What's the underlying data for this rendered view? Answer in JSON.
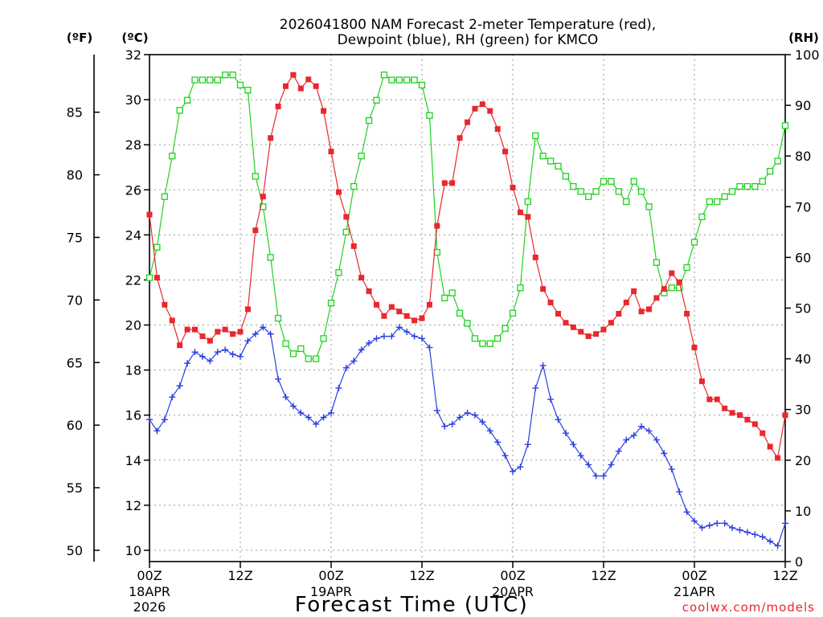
{
  "chart_data": {
    "type": "line",
    "title_line1": "2026041800 NAM Forecast 2-meter Temperature (red),",
    "title_line2": "Dewpoint (blue), RH (green) for KMCO",
    "unit_f": "(ºF)",
    "unit_c": "(ºC)",
    "unit_rh": "(RH)",
    "xlabel": "Forecast Time (UTC)",
    "credit": "coolwx.com/models",
    "ylim_c": [
      9.5,
      32
    ],
    "ylim_rh": [
      0,
      100
    ],
    "xlim_hours": [
      0,
      84
    ],
    "c_ticks": [
      10,
      12,
      14,
      16,
      18,
      20,
      22,
      24,
      26,
      28,
      30,
      32
    ],
    "f_ticks": [
      50,
      55,
      60,
      65,
      70,
      75,
      80,
      85
    ],
    "rh_ticks": [
      0,
      10,
      20,
      30,
      40,
      50,
      60,
      70,
      80,
      90,
      100
    ],
    "x_ticks": [
      {
        "h": 0,
        "label": "00Z",
        "sub1": "18APR",
        "sub2": "2026"
      },
      {
        "h": 12,
        "label": "12Z"
      },
      {
        "h": 24,
        "label": "00Z",
        "sub1": "19APR"
      },
      {
        "h": 36,
        "label": "12Z"
      },
      {
        "h": 48,
        "label": "00Z",
        "sub1": "20APR"
      },
      {
        "h": 60,
        "label": "12Z"
      },
      {
        "h": 72,
        "label": "00Z",
        "sub1": "21APR"
      },
      {
        "h": 84,
        "label": "12Z"
      }
    ],
    "series": [
      {
        "name": "Temperature",
        "color": "#e8282d",
        "marker": "filled-square",
        "values": [
          24.9,
          22.1,
          20.9,
          20.2,
          19.1,
          19.8,
          19.8,
          19.5,
          19.3,
          19.7,
          19.8,
          19.6,
          19.7,
          20.7,
          24.2,
          25.7,
          28.3,
          29.7,
          30.6,
          31.1,
          30.5,
          30.9,
          30.6,
          29.5,
          27.7,
          25.9,
          24.8,
          23.5,
          22.1,
          21.5,
          20.9,
          20.4,
          20.8,
          20.6,
          20.4,
          20.2,
          20.3,
          20.9,
          24.4,
          26.3,
          26.3,
          28.3,
          29.0,
          29.6,
          29.8,
          29.5,
          28.7,
          27.7,
          26.1,
          25.0,
          24.8,
          23.0,
          21.6,
          21.0,
          20.5,
          20.1,
          19.9,
          19.7,
          19.5,
          19.6,
          19.8,
          20.1,
          20.5,
          21.0,
          21.5,
          20.6,
          20.7,
          21.2,
          21.6,
          22.3,
          21.9,
          20.5,
          19.0,
          17.5,
          16.7,
          16.7,
          16.3,
          16.1,
          16.0,
          15.8,
          15.6,
          15.2,
          14.6,
          14.1,
          16.0
        ]
      },
      {
        "name": "Dewpoint",
        "color": "#2a3ee0",
        "marker": "plus",
        "values": [
          15.8,
          15.3,
          15.8,
          16.8,
          17.3,
          18.3,
          18.8,
          18.6,
          18.4,
          18.8,
          18.9,
          18.7,
          18.6,
          19.3,
          19.6,
          19.9,
          19.6,
          17.6,
          16.8,
          16.4,
          16.1,
          15.9,
          15.6,
          15.9,
          16.1,
          17.2,
          18.1,
          18.4,
          18.9,
          19.2,
          19.4,
          19.5,
          19.5,
          19.9,
          19.7,
          19.5,
          19.4,
          19.0,
          16.2,
          15.5,
          15.6,
          15.9,
          16.1,
          16.0,
          15.7,
          15.3,
          14.8,
          14.2,
          13.5,
          13.7,
          14.7,
          17.2,
          18.2,
          16.7,
          15.8,
          15.2,
          14.7,
          14.2,
          13.8,
          13.3,
          13.3,
          13.8,
          14.4,
          14.9,
          15.1,
          15.5,
          15.3,
          14.9,
          14.3,
          13.6,
          12.6,
          11.7,
          11.3,
          11.0,
          11.1,
          11.2,
          11.2,
          11.0,
          10.9,
          10.8,
          10.7,
          10.6,
          10.4,
          10.2,
          11.2
        ]
      },
      {
        "name": "RH",
        "color": "#1ed21e",
        "marker": "open-square",
        "values": [
          56,
          62,
          72,
          80,
          89,
          91,
          95,
          95,
          95,
          95,
          96,
          96,
          94,
          93,
          76,
          70,
          60,
          48,
          43,
          41,
          42,
          40,
          40,
          44,
          51,
          57,
          65,
          74,
          80,
          87,
          91,
          96,
          95,
          95,
          95,
          95,
          94,
          88,
          61,
          52,
          53,
          49,
          47,
          44,
          43,
          43,
          44,
          46,
          49,
          54,
          71,
          84,
          80,
          79,
          78,
          76,
          74,
          73,
          72,
          73,
          75,
          75,
          73,
          71,
          75,
          73,
          70,
          59,
          53,
          54,
          54,
          58,
          63,
          68,
          71,
          71,
          72,
          73,
          74,
          74,
          74,
          75,
          77,
          79,
          86
        ]
      }
    ]
  }
}
